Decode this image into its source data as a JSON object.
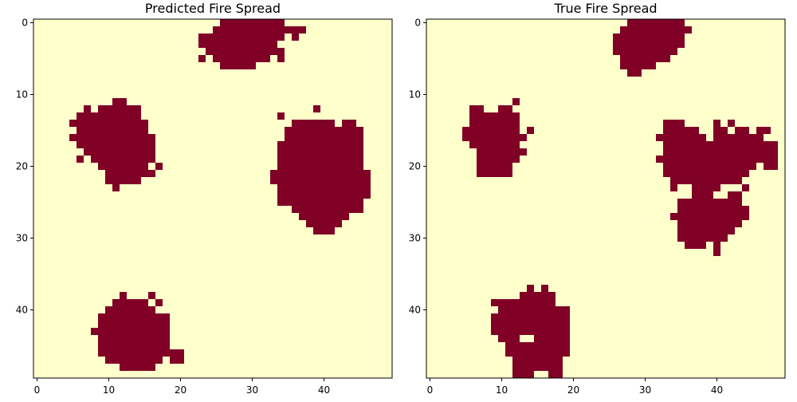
{
  "chart_data": [
    {
      "type": "heatmap",
      "title": "Predicted Fire Spread",
      "grid_size": [
        50,
        50
      ],
      "xticks": [
        0,
        10,
        20,
        30,
        40
      ],
      "yticks": [
        0,
        10,
        20,
        30,
        40
      ],
      "colors": {
        "unburned": "#ffffcc",
        "burned": "#800026"
      },
      "burned_rows": [
        {
          "r": 0,
          "runs": [
            [
              26,
              34
            ]
          ]
        },
        {
          "r": 1,
          "runs": [
            [
              25,
              37
            ]
          ]
        },
        {
          "r": 2,
          "runs": [
            [
              23,
              34
            ],
            [
              36,
              36
            ]
          ]
        },
        {
          "r": 3,
          "runs": [
            [
              23,
              33
            ]
          ]
        },
        {
          "r": 4,
          "runs": [
            [
              24,
              34
            ]
          ]
        },
        {
          "r": 5,
          "runs": [
            [
              23,
              23
            ],
            [
              25,
              32
            ],
            [
              34,
              34
            ]
          ]
        },
        {
          "r": 6,
          "runs": [
            [
              26,
              30
            ]
          ]
        },
        {
          "r": 11,
          "runs": [
            [
              11,
              12
            ]
          ]
        },
        {
          "r": 12,
          "runs": [
            [
              7,
              7
            ],
            [
              9,
              14
            ],
            [
              39,
              39
            ]
          ]
        },
        {
          "r": 13,
          "runs": [
            [
              6,
              14
            ],
            [
              34,
              34
            ]
          ]
        },
        {
          "r": 14,
          "runs": [
            [
              5,
              15
            ],
            [
              36,
              41
            ],
            [
              43,
              44
            ]
          ]
        },
        {
          "r": 15,
          "runs": [
            [
              6,
              15
            ],
            [
              35,
              45
            ]
          ]
        },
        {
          "r": 16,
          "runs": [
            [
              5,
              16
            ],
            [
              35,
              45
            ]
          ]
        },
        {
          "r": 17,
          "runs": [
            [
              6,
              16
            ],
            [
              34,
              45
            ]
          ]
        },
        {
          "r": 18,
          "runs": [
            [
              7,
              16
            ],
            [
              34,
              45
            ]
          ]
        },
        {
          "r": 19,
          "runs": [
            [
              6,
              6
            ],
            [
              8,
              16
            ],
            [
              34,
              45
            ]
          ]
        },
        {
          "r": 20,
          "runs": [
            [
              9,
              15
            ],
            [
              17,
              17
            ],
            [
              34,
              45
            ]
          ]
        },
        {
          "r": 21,
          "runs": [
            [
              10,
              16
            ],
            [
              33,
              46
            ]
          ]
        },
        {
          "r": 22,
          "runs": [
            [
              10,
              14
            ],
            [
              33,
              46
            ]
          ]
        },
        {
          "r": 23,
          "runs": [
            [
              11,
              11
            ],
            [
              34,
              46
            ]
          ]
        },
        {
          "r": 24,
          "runs": [
            [
              34,
              46
            ]
          ]
        },
        {
          "r": 25,
          "runs": [
            [
              34,
              45
            ]
          ]
        },
        {
          "r": 26,
          "runs": [
            [
              36,
              45
            ]
          ]
        },
        {
          "r": 27,
          "runs": [
            [
              37,
              43
            ]
          ]
        },
        {
          "r": 28,
          "runs": [
            [
              38,
              42
            ]
          ]
        },
        {
          "r": 29,
          "runs": [
            [
              39,
              41
            ]
          ]
        },
        {
          "r": 38,
          "runs": [
            [
              12,
              12
            ],
            [
              16,
              16
            ]
          ]
        },
        {
          "r": 39,
          "runs": [
            [
              11,
              15
            ],
            [
              17,
              17
            ]
          ]
        },
        {
          "r": 40,
          "runs": [
            [
              10,
              16
            ]
          ]
        },
        {
          "r": 41,
          "runs": [
            [
              9,
              18
            ]
          ]
        },
        {
          "r": 42,
          "runs": [
            [
              9,
              18
            ]
          ]
        },
        {
          "r": 43,
          "runs": [
            [
              8,
              18
            ]
          ]
        },
        {
          "r": 44,
          "runs": [
            [
              9,
              18
            ]
          ]
        },
        {
          "r": 45,
          "runs": [
            [
              9,
              18
            ]
          ]
        },
        {
          "r": 46,
          "runs": [
            [
              9,
              20
            ]
          ]
        },
        {
          "r": 47,
          "runs": [
            [
              10,
              17
            ],
            [
              19,
              20
            ]
          ]
        },
        {
          "r": 48,
          "runs": [
            [
              12,
              16
            ]
          ]
        }
      ]
    },
    {
      "type": "heatmap",
      "title": "True Fire Spread",
      "grid_size": [
        50,
        50
      ],
      "xticks": [
        0,
        10,
        20,
        30,
        40
      ],
      "yticks": [
        0,
        10,
        20,
        30,
        40
      ],
      "colors": {
        "unburned": "#ffffcc",
        "burned": "#800026"
      },
      "burned_rows": [
        {
          "r": 0,
          "runs": [
            [
              28,
              35
            ]
          ]
        },
        {
          "r": 1,
          "runs": [
            [
              27,
              36
            ]
          ]
        },
        {
          "r": 2,
          "runs": [
            [
              26,
              35
            ]
          ]
        },
        {
          "r": 3,
          "runs": [
            [
              26,
              35
            ]
          ]
        },
        {
          "r": 4,
          "runs": [
            [
              26,
              34
            ]
          ]
        },
        {
          "r": 5,
          "runs": [
            [
              27,
              33
            ]
          ]
        },
        {
          "r": 6,
          "runs": [
            [
              27,
              31
            ]
          ]
        },
        {
          "r": 7,
          "runs": [
            [
              28,
              29
            ]
          ]
        },
        {
          "r": 11,
          "runs": [
            [
              12,
              12
            ]
          ]
        },
        {
          "r": 12,
          "runs": [
            [
              6,
              7
            ],
            [
              10,
              11
            ]
          ]
        },
        {
          "r": 13,
          "runs": [
            [
              6,
              12
            ]
          ]
        },
        {
          "r": 14,
          "runs": [
            [
              6,
              12
            ],
            [
              33,
              35
            ],
            [
              40,
              40
            ],
            [
              42,
              42
            ]
          ]
        },
        {
          "r": 15,
          "runs": [
            [
              5,
              12
            ],
            [
              14,
              14
            ],
            [
              33,
              37
            ],
            [
              40,
              41
            ],
            [
              43,
              44
            ],
            [
              46,
              47
            ]
          ]
        },
        {
          "r": 16,
          "runs": [
            [
              5,
              13
            ],
            [
              32,
              38
            ],
            [
              40,
              46
            ]
          ]
        },
        {
          "r": 17,
          "runs": [
            [
              6,
              12
            ],
            [
              33,
              48
            ]
          ]
        },
        {
          "r": 18,
          "runs": [
            [
              7,
              13
            ],
            [
              33,
              48
            ]
          ]
        },
        {
          "r": 19,
          "runs": [
            [
              7,
              12
            ],
            [
              32,
              48
            ]
          ]
        },
        {
          "r": 20,
          "runs": [
            [
              7,
              11
            ],
            [
              33,
              45
            ],
            [
              47,
              48
            ]
          ]
        },
        {
          "r": 21,
          "runs": [
            [
              7,
              11
            ],
            [
              33,
              44
            ]
          ]
        },
        {
          "r": 22,
          "runs": [
            [
              34,
              43
            ]
          ]
        },
        {
          "r": 23,
          "runs": [
            [
              34,
              34
            ],
            [
              37,
              40
            ],
            [
              44,
              44
            ]
          ]
        },
        {
          "r": 24,
          "runs": [
            [
              37,
              39
            ],
            [
              42,
              43
            ]
          ]
        },
        {
          "r": 25,
          "runs": [
            [
              35,
              43
            ]
          ]
        },
        {
          "r": 26,
          "runs": [
            [
              35,
              44
            ]
          ]
        },
        {
          "r": 27,
          "runs": [
            [
              34,
              44
            ]
          ]
        },
        {
          "r": 28,
          "runs": [
            [
              35,
              43
            ]
          ]
        },
        {
          "r": 29,
          "runs": [
            [
              35,
              42
            ]
          ]
        },
        {
          "r": 30,
          "runs": [
            [
              35,
              41
            ]
          ]
        },
        {
          "r": 31,
          "runs": [
            [
              36,
              38
            ],
            [
              40,
              40
            ]
          ]
        },
        {
          "r": 32,
          "runs": [
            [
              40,
              40
            ]
          ]
        },
        {
          "r": 37,
          "runs": [
            [
              14,
              14
            ],
            [
              16,
              16
            ]
          ]
        },
        {
          "r": 38,
          "runs": [
            [
              13,
              17
            ]
          ]
        },
        {
          "r": 39,
          "runs": [
            [
              9,
              17
            ]
          ]
        },
        {
          "r": 40,
          "runs": [
            [
              10,
              19
            ]
          ]
        },
        {
          "r": 41,
          "runs": [
            [
              9,
              19
            ]
          ]
        },
        {
          "r": 42,
          "runs": [
            [
              9,
              19
            ]
          ]
        },
        {
          "r": 43,
          "runs": [
            [
              9,
              19
            ]
          ]
        },
        {
          "r": 44,
          "runs": [
            [
              10,
              12
            ],
            [
              15,
              19
            ]
          ]
        },
        {
          "r": 45,
          "runs": [
            [
              11,
              19
            ]
          ]
        },
        {
          "r": 46,
          "runs": [
            [
              11,
              19
            ]
          ]
        },
        {
          "r": 47,
          "runs": [
            [
              12,
              18
            ]
          ]
        },
        {
          "r": 48,
          "runs": [
            [
              12,
              18
            ]
          ]
        },
        {
          "r": 49,
          "runs": [
            [
              12,
              14
            ],
            [
              17,
              18
            ]
          ]
        }
      ]
    }
  ]
}
